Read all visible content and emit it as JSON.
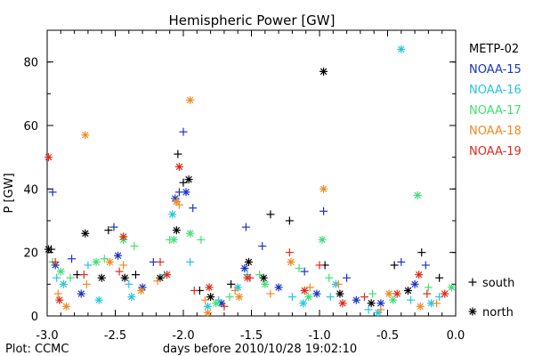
{
  "chart_data": {
    "type": "scatter",
    "title": "Hemispheric Power [GW]",
    "xlabel": "days before 2010/10/28 19:02:10",
    "ylabel": "P [GW]",
    "xlim": [
      -3.0,
      0.0
    ],
    "ylim": [
      0,
      90
    ],
    "xticks": [
      -3.0,
      -2.5,
      -2.0,
      -1.5,
      -1.0,
      -0.5,
      0.0
    ],
    "xtick_labels": [
      "-3.0",
      "-2.5",
      "-2.0",
      "-1.5",
      "-1.0",
      "-0.5",
      "0.0"
    ],
    "yticks": [
      0,
      20,
      40,
      60,
      80
    ],
    "ytick_labels": [
      "0",
      "20",
      "40",
      "60",
      "80"
    ],
    "grid": false,
    "legend_position": "right",
    "series": [
      {
        "name": "METP-02",
        "color": "#000000",
        "south": [
          [
            -2.97,
            21
          ],
          [
            -2.78,
            13
          ],
          [
            -2.55,
            27
          ],
          [
            -2.35,
            13
          ],
          [
            -2.04,
            51
          ],
          [
            -2.0,
            42
          ],
          [
            -1.88,
            8
          ],
          [
            -1.65,
            10
          ],
          [
            -1.36,
            32
          ],
          [
            -1.22,
            30
          ],
          [
            -0.96,
            16
          ],
          [
            -0.45,
            16
          ],
          [
            -0.25,
            20
          ],
          [
            -0.12,
            12
          ]
        ],
        "north": [
          [
            -2.99,
            21
          ],
          [
            -2.72,
            26
          ],
          [
            -2.6,
            12
          ],
          [
            -2.43,
            12
          ],
          [
            -2.17,
            12
          ],
          [
            -2.05,
            27
          ],
          [
            -1.96,
            43
          ],
          [
            -1.8,
            6
          ],
          [
            -1.52,
            17
          ],
          [
            -1.41,
            12
          ],
          [
            -0.97,
            77
          ],
          [
            -0.85,
            7
          ],
          [
            -0.62,
            4
          ],
          [
            -0.35,
            8
          ]
        ]
      },
      {
        "name": "NOAA-15",
        "color": "#1a33c8",
        "south": [
          [
            -2.96,
            39
          ],
          [
            -2.82,
            18
          ],
          [
            -2.51,
            28
          ],
          [
            -2.22,
            17
          ],
          [
            -2.03,
            39
          ],
          [
            -2.0,
            58
          ],
          [
            -1.93,
            34
          ],
          [
            -1.54,
            28
          ],
          [
            -1.42,
            22
          ],
          [
            -1.11,
            14
          ],
          [
            -0.97,
            33
          ],
          [
            -0.8,
            12
          ],
          [
            -0.4,
            17
          ],
          [
            -0.22,
            16
          ]
        ],
        "north": [
          [
            -2.94,
            16
          ],
          [
            -2.75,
            7
          ],
          [
            -2.48,
            19
          ],
          [
            -2.3,
            9
          ],
          [
            -2.06,
            37
          ],
          [
            -1.98,
            39
          ],
          [
            -1.72,
            4
          ],
          [
            -1.55,
            15
          ],
          [
            -1.3,
            9
          ],
          [
            -1.02,
            7
          ],
          [
            -0.73,
            5
          ],
          [
            -0.55,
            4
          ],
          [
            -0.3,
            10
          ]
        ]
      },
      {
        "name": "NOAA-16",
        "color": "#22c6e0",
        "south": [
          [
            -2.93,
            12
          ],
          [
            -2.7,
            16
          ],
          [
            -2.4,
            10
          ],
          [
            -2.14,
            13
          ],
          [
            -1.95,
            17
          ],
          [
            -1.74,
            5
          ],
          [
            -1.53,
            13
          ],
          [
            -1.2,
            6
          ],
          [
            -0.92,
            6
          ],
          [
            -0.64,
            2
          ],
          [
            -0.33,
            5
          ],
          [
            -0.12,
            6
          ]
        ],
        "north": [
          [
            -2.88,
            10
          ],
          [
            -2.62,
            5
          ],
          [
            -2.38,
            6
          ],
          [
            -2.08,
            32
          ],
          [
            -1.82,
            3
          ],
          [
            -1.6,
            9
          ],
          [
            -1.12,
            4
          ],
          [
            -0.88,
            10
          ],
          [
            -0.57,
            1
          ],
          [
            -0.4,
            84
          ],
          [
            -0.18,
            4
          ]
        ]
      },
      {
        "name": "NOAA-17",
        "color": "#40e070",
        "south": [
          [
            -2.96,
            17
          ],
          [
            -2.83,
            12
          ],
          [
            -2.58,
            18
          ],
          [
            -2.36,
            22
          ],
          [
            -2.1,
            24
          ],
          [
            -1.87,
            24
          ],
          [
            -1.66,
            6
          ],
          [
            -1.44,
            13
          ],
          [
            -1.15,
            15
          ],
          [
            -0.93,
            12
          ],
          [
            -0.61,
            7
          ],
          [
            -0.2,
            9
          ]
        ],
        "north": [
          [
            -2.9,
            14
          ],
          [
            -2.64,
            17
          ],
          [
            -2.44,
            24
          ],
          [
            -2.07,
            24
          ],
          [
            -1.95,
            26
          ],
          [
            -1.76,
            4
          ],
          [
            -1.4,
            10
          ],
          [
            -1.08,
            6
          ],
          [
            -0.98,
            24
          ],
          [
            -0.46,
            5
          ],
          [
            -0.28,
            38
          ],
          [
            -0.03,
            9
          ]
        ]
      },
      {
        "name": "NOAA-18",
        "color": "#f08a20",
        "south": [
          [
            -2.92,
            7
          ],
          [
            -2.71,
            10
          ],
          [
            -2.44,
            16
          ],
          [
            -2.19,
            11
          ],
          [
            -2.03,
            35
          ],
          [
            -1.84,
            5
          ],
          [
            -1.62,
            8
          ],
          [
            -1.36,
            7
          ],
          [
            -1.07,
            9
          ],
          [
            -0.86,
            10
          ],
          [
            -0.55,
            2
          ],
          [
            -0.14,
            4
          ]
        ],
        "north": [
          [
            -2.86,
            3
          ],
          [
            -2.72,
            57
          ],
          [
            -2.54,
            17
          ],
          [
            -2.31,
            8
          ],
          [
            -2.05,
            36
          ],
          [
            -1.95,
            68
          ],
          [
            -1.82,
            1
          ],
          [
            -1.59,
            6
          ],
          [
            -1.21,
            17
          ],
          [
            -0.97,
            40
          ],
          [
            -0.49,
            7
          ],
          [
            -0.26,
            3
          ]
        ]
      },
      {
        "name": "NOAA-19",
        "color": "#e02a1a",
        "south": [
          [
            -2.94,
            17
          ],
          [
            -2.73,
            13
          ],
          [
            -2.47,
            14
          ],
          [
            -2.17,
            17
          ],
          [
            -1.92,
            8
          ],
          [
            -1.7,
            3
          ],
          [
            -1.51,
            12
          ],
          [
            -1.22,
            20
          ],
          [
            -1.0,
            16
          ],
          [
            -0.67,
            6
          ],
          [
            -0.21,
            7
          ]
        ],
        "north": [
          [
            -2.99,
            50
          ],
          [
            -2.91,
            5
          ],
          [
            -2.44,
            25
          ],
          [
            -2.12,
            13
          ],
          [
            -2.03,
            47
          ],
          [
            -1.81,
            9
          ],
          [
            -1.53,
            12
          ],
          [
            -1.11,
            8
          ],
          [
            -0.83,
            4
          ],
          [
            -0.43,
            7
          ],
          [
            -0.27,
            13
          ],
          [
            -0.08,
            7
          ]
        ]
      }
    ],
    "symbols": [
      {
        "glyph": "+",
        "label": "south"
      },
      {
        "glyph": "*",
        "label": "north"
      }
    ],
    "footer": "Plot: CCMC"
  }
}
